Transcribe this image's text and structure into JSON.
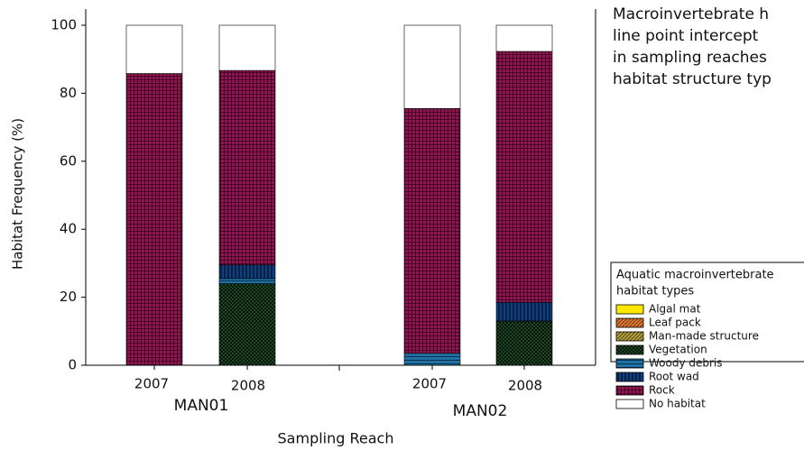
{
  "chart_data": {
    "type": "stacked-bar",
    "ylabel": "Habitat Frequency (%)",
    "xlabel": "Sampling Reach",
    "categories": [
      "2007",
      "2008",
      "2007",
      "2008"
    ],
    "groups": [
      "MAN01",
      "MAN02"
    ],
    "ylim": [
      0,
      100
    ],
    "yticks": [
      0,
      20,
      40,
      60,
      80,
      100
    ],
    "series": [
      {
        "name": "Algal mat",
        "color": "#ffe800",
        "hatch": "solid",
        "values": [
          0,
          0,
          0,
          0
        ]
      },
      {
        "name": "Leaf pack",
        "color": "#f07820",
        "hatch": "diagonal",
        "values": [
          0,
          0,
          0,
          0
        ]
      },
      {
        "name": "Man-made structure",
        "color": "#b8a42a",
        "hatch": "diagonal",
        "values": [
          0,
          0,
          0,
          0
        ]
      },
      {
        "name": "Vegetation",
        "color": "#1f5c2c",
        "hatch": "cross",
        "values": [
          0,
          24,
          0,
          13
        ]
      },
      {
        "name": "Woody debris",
        "color": "#1f72a2",
        "hatch": "horizontal",
        "values": [
          0,
          1.5,
          3.5,
          0
        ]
      },
      {
        "name": "Root wad",
        "color": "#103f82",
        "hatch": "vertical",
        "values": [
          0,
          4,
          0,
          5.5
        ]
      },
      {
        "name": "Rock",
        "color": "#9a1050",
        "hatch": "grid",
        "values": [
          85.8,
          57.2,
          72,
          73.8
        ]
      },
      {
        "name": "No habitat",
        "color": "#ffffff",
        "hatch": "solid",
        "values": [
          14.2,
          13.3,
          24.5,
          7.7
        ]
      }
    ],
    "legend_title": [
      "Aquatic macroinvertebrate",
      "habitat types"
    ],
    "annotation": [
      "Macroinvertebrate h",
      "line point intercept",
      "in sampling reaches",
      "habitat structure typ"
    ]
  }
}
